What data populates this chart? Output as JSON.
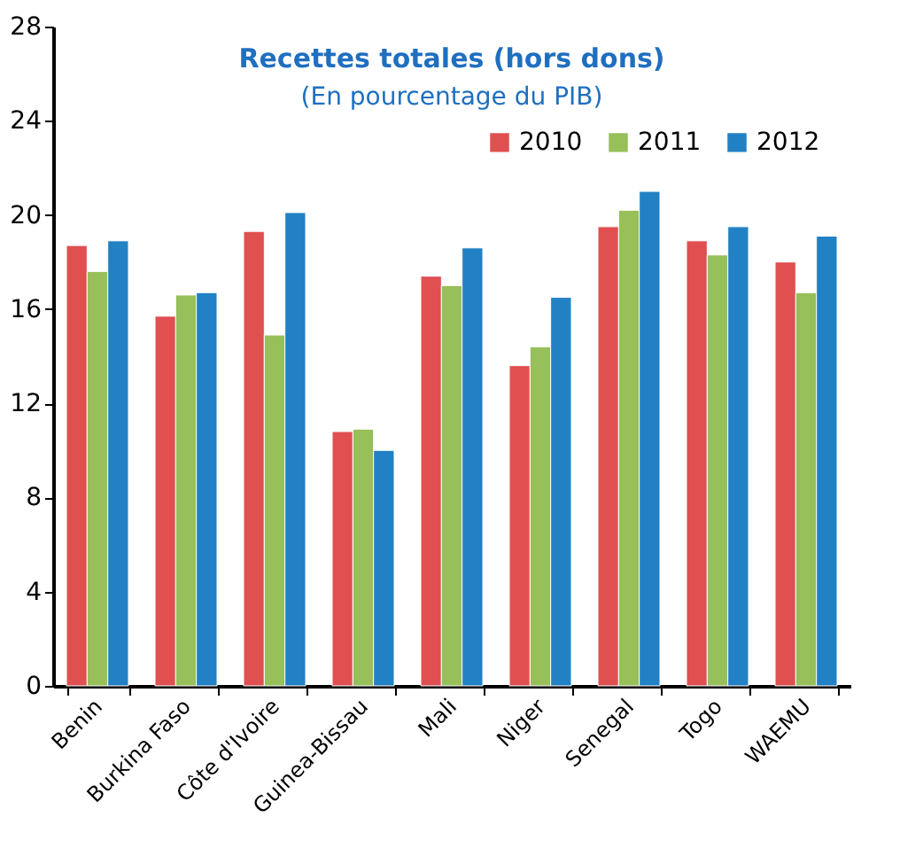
{
  "chart_data": {
    "type": "bar",
    "title": "Recettes totales (hors dons)",
    "subtitle": "(En pourcentage du PIB)",
    "categories": [
      "Benin",
      "Burkina Faso",
      "Côte d'Ivoire",
      "Guinea-Bissau",
      "Mali",
      "Niger",
      "Senegal",
      "Togo",
      "WAEMU"
    ],
    "series": [
      {
        "name": "2010",
        "color": "#e05050",
        "values": [
          18.7,
          15.7,
          19.3,
          10.8,
          17.4,
          13.6,
          19.5,
          18.9,
          18.0
        ]
      },
      {
        "name": "2011",
        "color": "#97bf5a",
        "values": [
          17.6,
          16.6,
          14.9,
          10.9,
          17.0,
          14.4,
          20.2,
          18.3,
          16.7
        ]
      },
      {
        "name": "2012",
        "color": "#2281c4",
        "values": [
          18.9,
          16.7,
          20.1,
          10.0,
          18.6,
          16.5,
          21.0,
          19.5,
          19.1
        ]
      }
    ],
    "ylim": [
      0,
      28
    ],
    "yticks": [
      0,
      4,
      8,
      12,
      16,
      20,
      24,
      28
    ],
    "grid": false,
    "legend": "top right"
  }
}
